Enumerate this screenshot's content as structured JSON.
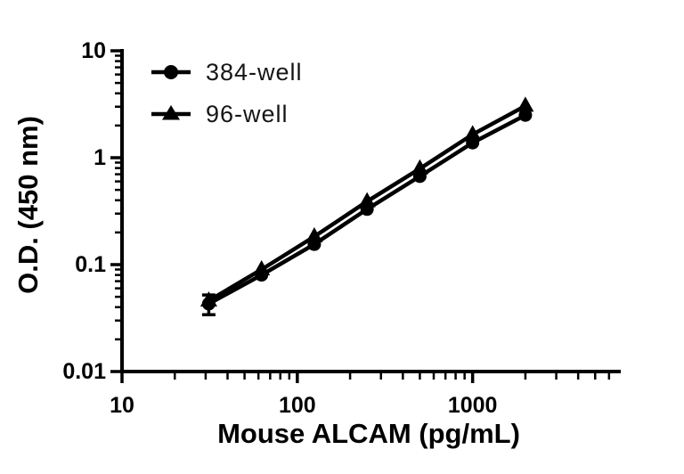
{
  "page": {
    "background_color": "#ffffff",
    "foreground_color": "#000000"
  },
  "chart_data": {
    "type": "line",
    "title": "",
    "xlabel": "Mouse ALCAM (pg/mL)",
    "ylabel": "O.D. (450 nm)",
    "x_scale": "log",
    "y_scale": "log",
    "x_domain": [
      10,
      7000
    ],
    "y_domain": [
      0.01,
      10
    ],
    "grid": false,
    "color": "#000000",
    "x_major_ticks": [
      {
        "value": 10,
        "label": "10"
      },
      {
        "value": 100,
        "label": "100"
      },
      {
        "value": 1000,
        "label": "1000"
      }
    ],
    "y_major_ticks": [
      {
        "value": 10,
        "label": "10"
      },
      {
        "value": 1,
        "label": "1"
      },
      {
        "value": 0.1,
        "label": "0.1"
      },
      {
        "value": 0.01,
        "label": "0.01"
      }
    ],
    "x": [
      31.25,
      62.5,
      125,
      250,
      500,
      1000,
      2000
    ],
    "series": [
      {
        "name": "384-well",
        "marker": "circle",
        "values": [
          0.043,
          0.08,
          0.155,
          0.33,
          0.67,
          1.38,
          2.5
        ],
        "error_bars": [
          {
            "x": 31.25,
            "low": 0.034,
            "high": 0.052
          }
        ]
      },
      {
        "name": "96-well",
        "marker": "triangle",
        "values": [
          0.046,
          0.09,
          0.183,
          0.39,
          0.79,
          1.65,
          3.05
        ],
        "error_bars": []
      }
    ],
    "legend_position": "top-left-inside"
  },
  "legend": {
    "items": [
      {
        "label": "384-well",
        "marker": "circle"
      },
      {
        "label": "96-well",
        "marker": "triangle"
      }
    ]
  }
}
